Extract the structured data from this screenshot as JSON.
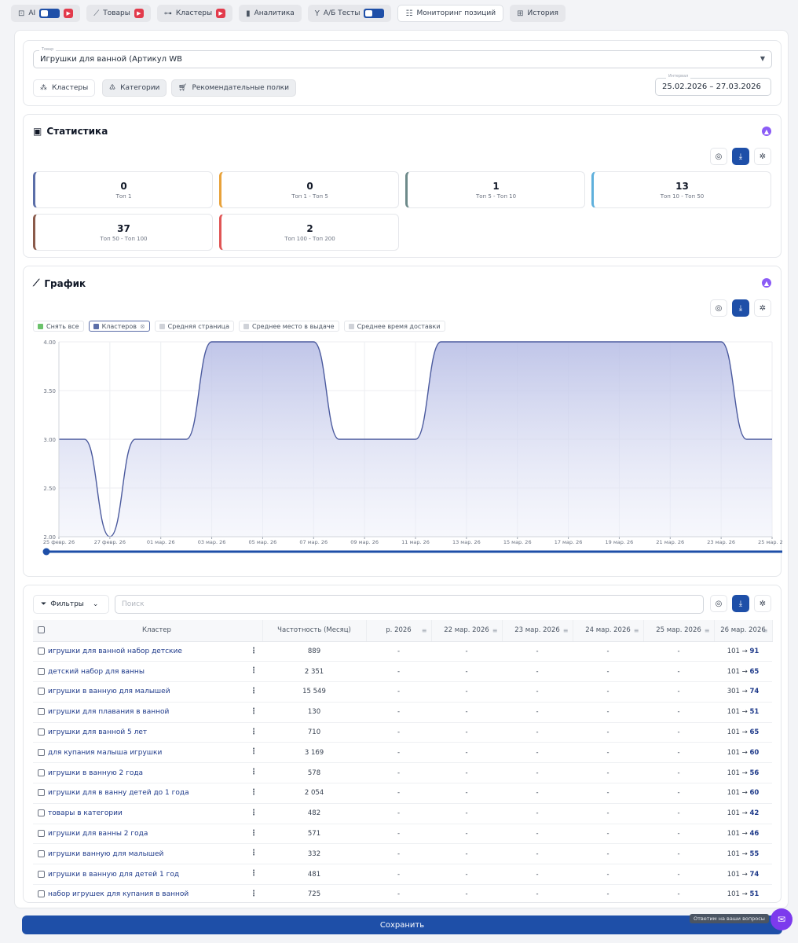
{
  "nav": {
    "tabs": [
      {
        "label": "AI"
      },
      {
        "label": "Товары"
      },
      {
        "label": "Кластеры"
      },
      {
        "label": "Аналитика"
      },
      {
        "label": "А/Б Тесты"
      },
      {
        "label": "Мониторинг позиций"
      },
      {
        "label": "История"
      }
    ]
  },
  "product": {
    "label": "Товар",
    "value": "Игрушки для ванной (Артикул WB",
    "chips": [
      "Кластеры",
      "Категории",
      "Рекомендательные полки"
    ],
    "interval_label": "Интервал",
    "interval": "25.02.2026 – 27.03.2026"
  },
  "stats": {
    "title": "Статистика",
    "cards": [
      {
        "value": "0",
        "label": "Топ 1",
        "color": "#5b6ea8"
      },
      {
        "value": "0",
        "label": "Топ 1 - Топ 5",
        "color": "#e8a23a"
      },
      {
        "value": "1",
        "label": "Топ 5 - Топ 10",
        "color": "#6d8a8a"
      },
      {
        "value": "13",
        "label": "Топ 10 - Топ 50",
        "color": "#5fb0dc"
      },
      {
        "value": "37",
        "label": "Топ 50 - Топ 100",
        "color": "#8a5a4a"
      },
      {
        "value": "2",
        "label": "Топ 100 - Топ 200",
        "color": "#e05555"
      }
    ]
  },
  "chart": {
    "title": "График",
    "legend": [
      {
        "label": "Снять все",
        "color": "#6bc26b"
      },
      {
        "label": "Кластеров",
        "color": "#5b6ea8"
      },
      {
        "label": "Средняя страница",
        "color": "#cfd2d8"
      },
      {
        "label": "Среднее место в выдаче",
        "color": "#cfd2d8"
      },
      {
        "label": "Среднее время доставки",
        "color": "#cfd2d8"
      }
    ]
  },
  "chart_data": {
    "type": "area",
    "x": [
      "25 февр. 26",
      "26 февр. 26",
      "27 февр. 26",
      "28 февр. 26",
      "01 мар. 26",
      "02 мар. 26",
      "03 мар. 26",
      "04 мар. 26",
      "05 мар. 26",
      "06 мар. 26",
      "07 мар. 26",
      "08 мар. 26",
      "09 мар. 26",
      "10 мар. 26",
      "11 мар. 26",
      "12 мар. 26",
      "13 мар. 26",
      "14 мар. 26",
      "15 мар. 26",
      "16 мар. 26",
      "17 мар. 26",
      "18 мар. 26",
      "19 мар. 26",
      "20 мар. 26",
      "21 мар. 26",
      "22 мар. 26",
      "23 мар. 26",
      "24 мар. 26",
      "25 мар. 26"
    ],
    "xticks": [
      "25 февр. 26",
      "27 февр. 26",
      "01 мар. 26",
      "03 мар. 26",
      "05 мар. 26",
      "07 мар. 26",
      "09 мар. 26",
      "11 мар. 26",
      "13 мар. 26",
      "15 мар. 26",
      "17 мар. 26",
      "19 мар. 26",
      "21 мар. 26",
      "23 мар. 26",
      "25 мар. 26"
    ],
    "series": [
      {
        "name": "Кластеров",
        "values": [
          3,
          3,
          2,
          3,
          3,
          3,
          4,
          4,
          4,
          4,
          4,
          3,
          3,
          3,
          3,
          4,
          4,
          4,
          4,
          4,
          4,
          4,
          4,
          4,
          4,
          4,
          4,
          3,
          3
        ]
      }
    ],
    "yticks": [
      "2.00",
      "2.50",
      "3.00",
      "3.50",
      "4.00"
    ],
    "ylim": [
      2,
      4
    ],
    "color": "#4b5a9e"
  },
  "table": {
    "filters_label": "Фильтры",
    "search_placeholder": "Поиск",
    "columns": [
      "Кластер",
      "Частотность (Месяц)",
      "р. 2026",
      "22 мар. 2026",
      "23 мар. 2026",
      "24 мар. 2026",
      "25 мар. 2026",
      "26 мар. 2026"
    ],
    "rows": [
      {
        "name": "игрушки для ванной набор детские",
        "freq": "889",
        "c1": "-",
        "c2": "-",
        "c3": "-",
        "c4": "-",
        "c5": "-",
        "from": "101",
        "to": "91"
      },
      {
        "name": "детский набор для ванны",
        "freq": "2 351",
        "c1": "-",
        "c2": "-",
        "c3": "-",
        "c4": "-",
        "c5": "-",
        "from": "101",
        "to": "65"
      },
      {
        "name": "игрушки в ванную для малышей",
        "freq": "15 549",
        "c1": "-",
        "c2": "-",
        "c3": "-",
        "c4": "-",
        "c5": "-",
        "from": "301",
        "to": "74"
      },
      {
        "name": "игрушки для плавания в ванной",
        "freq": "130",
        "c1": "-",
        "c2": "-",
        "c3": "-",
        "c4": "-",
        "c5": "-",
        "from": "101",
        "to": "51"
      },
      {
        "name": "игрушки для ванной 5 лет",
        "freq": "710",
        "c1": "-",
        "c2": "-",
        "c3": "-",
        "c4": "-",
        "c5": "-",
        "from": "101",
        "to": "65"
      },
      {
        "name": "для купания малыша игрушки",
        "freq": "3 169",
        "c1": "-",
        "c2": "-",
        "c3": "-",
        "c4": "-",
        "c5": "-",
        "from": "101",
        "to": "60"
      },
      {
        "name": "игрушки в ванную 2 года",
        "freq": "578",
        "c1": "-",
        "c2": "-",
        "c3": "-",
        "c4": "-",
        "c5": "-",
        "from": "101",
        "to": "56"
      },
      {
        "name": "игрушки для в ванну детей до 1 года",
        "freq": "2 054",
        "c1": "-",
        "c2": "-",
        "c3": "-",
        "c4": "-",
        "c5": "-",
        "from": "101",
        "to": "60"
      },
      {
        "name": "товары в категории",
        "freq": "482",
        "c1": "-",
        "c2": "-",
        "c3": "-",
        "c4": "-",
        "c5": "-",
        "from": "101",
        "to": "42"
      },
      {
        "name": "игрушки для ванны 2 года",
        "freq": "571",
        "c1": "-",
        "c2": "-",
        "c3": "-",
        "c4": "-",
        "c5": "-",
        "from": "101",
        "to": "46"
      },
      {
        "name": "игрушки ванную для малышей",
        "freq": "332",
        "c1": "-",
        "c2": "-",
        "c3": "-",
        "c4": "-",
        "c5": "-",
        "from": "101",
        "to": "55"
      },
      {
        "name": "игрушки в ванную для детей 1 год",
        "freq": "481",
        "c1": "-",
        "c2": "-",
        "c3": "-",
        "c4": "-",
        "c5": "-",
        "from": "101",
        "to": "74"
      },
      {
        "name": "набор игрушек для купания в ванной",
        "freq": "725",
        "c1": "-",
        "c2": "-",
        "c3": "-",
        "c4": "-",
        "c5": "-",
        "from": "101",
        "to": "51"
      }
    ]
  },
  "footer": {
    "save_label": "Сохранить",
    "help_label": "Ответим на ваши вопросы"
  }
}
